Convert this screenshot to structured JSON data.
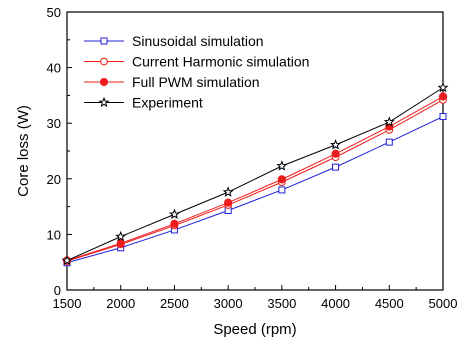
{
  "chart_data": {
    "type": "line",
    "title": "",
    "xlabel": "Speed (rpm)",
    "ylabel": "Core loss (W)",
    "xlim": [
      1500,
      5000
    ],
    "ylim": [
      0,
      50
    ],
    "x_ticks": [
      1500,
      2000,
      2500,
      3000,
      3500,
      4000,
      4500,
      5000
    ],
    "y_ticks": [
      0,
      10,
      20,
      30,
      40,
      50
    ],
    "grid": false,
    "legend_position": "top-left",
    "x": [
      1500,
      2000,
      2500,
      3000,
      3500,
      4000,
      4500,
      5000
    ],
    "series": [
      {
        "name": "Sinusoidal simulation",
        "color": "#1f1fd8",
        "marker": "open-square",
        "values": [
          4.9,
          7.6,
          10.8,
          14.3,
          18.0,
          22.1,
          26.6,
          31.2
        ]
      },
      {
        "name": "Current Harmonic simulation",
        "color": "#ee1c1c",
        "marker": "open-circle",
        "values": [
          5.2,
          8.2,
          11.6,
          15.3,
          19.4,
          23.9,
          28.8,
          34.2
        ]
      },
      {
        "name": "Full PWM simulation",
        "color": "#ee1c1c",
        "marker": "filled-circle",
        "values": [
          5.3,
          8.4,
          11.9,
          15.7,
          19.9,
          24.5,
          29.4,
          34.8
        ]
      },
      {
        "name": "Experiment",
        "color": "#000000",
        "marker": "open-star",
        "values": [
          5.3,
          9.6,
          13.6,
          17.6,
          22.3,
          26.1,
          30.2,
          36.4
        ]
      }
    ]
  }
}
